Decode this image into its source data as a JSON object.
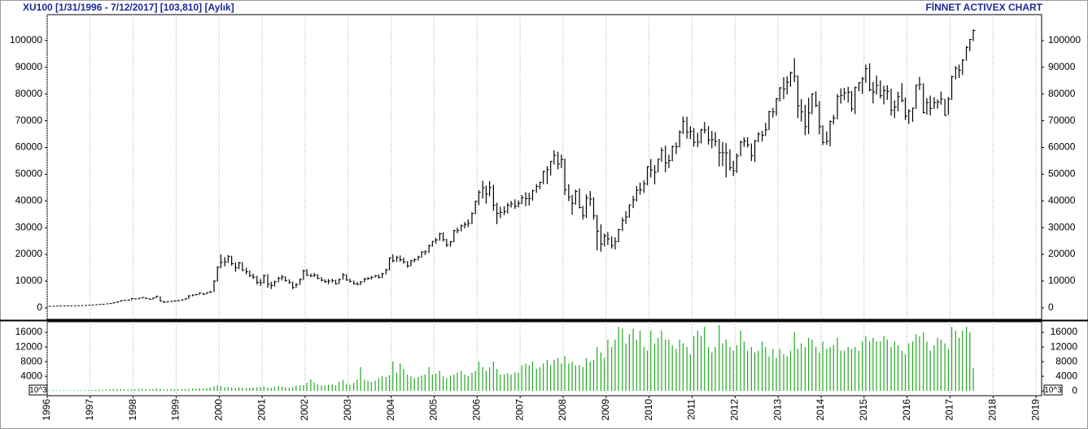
{
  "chart_data": {
    "type": "ohlc",
    "title": "XU100  [1/31/1996 - 7/12/2017]  [103,810]  [Aylık]",
    "source": "FİNNET ACTIVEX CHART",
    "color": "#000000",
    "grid": true,
    "xlim": [
      1996,
      2019.13
    ],
    "xticks": [
      1996,
      1997,
      1998,
      1999,
      2000,
      2001,
      2002,
      2003,
      2004,
      2005,
      2006,
      2007,
      2008,
      2009,
      2010,
      2011,
      2012,
      2013,
      2014,
      2015,
      2016,
      2017,
      2018,
      2019
    ],
    "ylim": [
      -4300,
      109700
    ],
    "yticks": [
      0,
      10000,
      20000,
      30000,
      40000,
      50000,
      60000,
      70000,
      80000,
      90000,
      100000
    ],
    "x": [
      1996.04,
      1996.13,
      1996.21,
      1996.29,
      1996.38,
      1996.46,
      1996.54,
      1996.63,
      1996.71,
      1996.79,
      1996.88,
      1996.96,
      1997.04,
      1997.13,
      1997.21,
      1997.29,
      1997.38,
      1997.46,
      1997.54,
      1997.63,
      1997.71,
      1997.79,
      1997.88,
      1997.96,
      1998.04,
      1998.13,
      1998.21,
      1998.29,
      1998.38,
      1998.46,
      1998.54,
      1998.63,
      1998.71,
      1998.79,
      1998.88,
      1998.96,
      1999.04,
      1999.13,
      1999.21,
      1999.29,
      1999.38,
      1999.46,
      1999.54,
      1999.63,
      1999.71,
      1999.79,
      1999.88,
      1999.96,
      2000.04,
      2000.13,
      2000.21,
      2000.29,
      2000.38,
      2000.46,
      2000.54,
      2000.63,
      2000.71,
      2000.79,
      2000.88,
      2000.96,
      2001.04,
      2001.13,
      2001.21,
      2001.29,
      2001.38,
      2001.46,
      2001.54,
      2001.63,
      2001.71,
      2001.79,
      2001.88,
      2001.96,
      2002.04,
      2002.13,
      2002.21,
      2002.29,
      2002.38,
      2002.46,
      2002.54,
      2002.63,
      2002.71,
      2002.79,
      2002.88,
      2002.96,
      2003.04,
      2003.13,
      2003.21,
      2003.29,
      2003.38,
      2003.46,
      2003.54,
      2003.63,
      2003.71,
      2003.79,
      2003.88,
      2003.96,
      2004.04,
      2004.13,
      2004.21,
      2004.29,
      2004.38,
      2004.46,
      2004.54,
      2004.63,
      2004.71,
      2004.79,
      2004.88,
      2004.96,
      2005.04,
      2005.13,
      2005.21,
      2005.29,
      2005.38,
      2005.46,
      2005.54,
      2005.63,
      2005.71,
      2005.79,
      2005.88,
      2005.96,
      2006.04,
      2006.13,
      2006.21,
      2006.29,
      2006.38,
      2006.46,
      2006.54,
      2006.63,
      2006.71,
      2006.79,
      2006.88,
      2006.96,
      2007.04,
      2007.13,
      2007.21,
      2007.29,
      2007.38,
      2007.46,
      2007.54,
      2007.63,
      2007.71,
      2007.79,
      2007.88,
      2007.96,
      2008.04,
      2008.13,
      2008.21,
      2008.29,
      2008.38,
      2008.46,
      2008.54,
      2008.63,
      2008.71,
      2008.79,
      2008.88,
      2008.96,
      2009.04,
      2009.13,
      2009.21,
      2009.29,
      2009.38,
      2009.46,
      2009.54,
      2009.63,
      2009.71,
      2009.79,
      2009.88,
      2009.96,
      2010.04,
      2010.13,
      2010.21,
      2010.29,
      2010.38,
      2010.46,
      2010.54,
      2010.63,
      2010.71,
      2010.79,
      2010.88,
      2010.96,
      2011.04,
      2011.13,
      2011.21,
      2011.29,
      2011.38,
      2011.46,
      2011.54,
      2011.63,
      2011.71,
      2011.79,
      2011.88,
      2011.96,
      2012.04,
      2012.13,
      2012.21,
      2012.29,
      2012.38,
      2012.46,
      2012.54,
      2012.63,
      2012.71,
      2012.79,
      2012.88,
      2012.96,
      2013.04,
      2013.13,
      2013.21,
      2013.29,
      2013.38,
      2013.46,
      2013.54,
      2013.63,
      2013.71,
      2013.79,
      2013.88,
      2013.96,
      2014.04,
      2014.13,
      2014.21,
      2014.29,
      2014.38,
      2014.46,
      2014.54,
      2014.63,
      2014.71,
      2014.79,
      2014.88,
      2014.96,
      2015.04,
      2015.13,
      2015.21,
      2015.29,
      2015.38,
      2015.46,
      2015.54,
      2015.63,
      2015.71,
      2015.79,
      2015.88,
      2015.96,
      2016.04,
      2016.13,
      2016.21,
      2016.29,
      2016.38,
      2016.46,
      2016.54,
      2016.63,
      2016.71,
      2016.79,
      2016.88,
      2016.96,
      2017.04,
      2017.13,
      2017.21,
      2017.29,
      2017.38,
      2017.46,
      2017.54
    ],
    "high": [
      600,
      640,
      670,
      730,
      730,
      750,
      740,
      790,
      830,
      870,
      930,
      1000,
      1100,
      1250,
      1300,
      1400,
      1550,
      1650,
      1950,
      2400,
      2800,
      2950,
      3100,
      3500,
      3600,
      3700,
      4000,
      4000,
      3600,
      3800,
      4500,
      4300,
      2600,
      2500,
      2600,
      2800,
      2900,
      3100,
      3500,
      4700,
      5000,
      5200,
      5700,
      5600,
      5800,
      6300,
      10300,
      15500,
      20000,
      19000,
      19800,
      19500,
      17000,
      17200,
      17100,
      15000,
      14000,
      12800,
      12000,
      10800,
      12500,
      12600,
      9700,
      10200,
      11600,
      12300,
      11800,
      10700,
      9800,
      9200,
      11000,
      14300,
      14500,
      12800,
      13000,
      12600,
      11500,
      10700,
      10800,
      10900,
      10500,
      11000,
      13000,
      12600,
      10900,
      10200,
      9700,
      10000,
      11200,
      11500,
      11900,
      12300,
      12500,
      13100,
      14600,
      18900,
      20000,
      19500,
      19600,
      18800,
      17500,
      18000,
      18500,
      19500,
      21200,
      21500,
      23600,
      25000,
      26200,
      28100,
      28300,
      25800,
      25000,
      29200,
      30000,
      31200,
      32100,
      33100,
      35800,
      40100,
      44000,
      47500,
      45800,
      47400,
      46000,
      39300,
      37800,
      38000,
      39300,
      40000,
      40600,
      40200,
      42200,
      43300,
      43000,
      44200,
      46300,
      47200,
      51300,
      53000,
      55000,
      59000,
      58400,
      57300,
      55800,
      46300,
      42300,
      44200,
      44600,
      38100,
      42500,
      43700,
      41400,
      34800,
      31200,
      27800,
      28400,
      26700,
      26400,
      29600,
      33800,
      36100,
      38700,
      41900,
      45600,
      46900,
      47700,
      53000,
      55700,
      53400,
      55800,
      60000,
      60700,
      57300,
      60700,
      61900,
      66400,
      71600,
      71500,
      68000,
      67300,
      65500,
      67000,
      69500,
      68000,
      66200,
      65800,
      63200,
      62000,
      61600,
      59300,
      55000,
      57800,
      62600,
      63800,
      63800,
      61500,
      62800,
      65700,
      66200,
      69200,
      73700,
      74800,
      78500,
      82600,
      86300,
      86600,
      88400,
      93400,
      87000,
      78100,
      75900,
      78600,
      80300,
      81000,
      77300,
      68300,
      66000,
      70100,
      72200,
      80000,
      82100,
      82300,
      82700,
      81100,
      82800,
      84500,
      86400,
      91000,
      91500,
      84500,
      86900,
      85100,
      83100,
      83300,
      82000,
      77600,
      80900,
      84100,
      78700,
      74300,
      74900,
      83500,
      86400,
      84000,
      78500,
      79400,
      78800,
      78000,
      80900,
      78200,
      78900,
      86900,
      90500,
      91000,
      93000,
      98000,
      100600,
      104200
    ],
    "low": [
      480,
      550,
      590,
      630,
      660,
      680,
      660,
      680,
      740,
      780,
      820,
      880,
      950,
      1050,
      1150,
      1200,
      1330,
      1480,
      1580,
      1850,
      2250,
      2600,
      2700,
      2850,
      3200,
      3200,
      3500,
      3400,
      3100,
      3100,
      3600,
      2400,
      1800,
      2000,
      2200,
      2300,
      2400,
      2600,
      2900,
      3300,
      4300,
      4600,
      4900,
      4800,
      5000,
      5500,
      5900,
      9800,
      14800,
      15500,
      16800,
      15800,
      13500,
      14500,
      13800,
      12500,
      11600,
      10800,
      8700,
      8200,
      9000,
      7500,
      7000,
      8000,
      9500,
      10200,
      9800,
      9000,
      7000,
      7500,
      8600,
      10400,
      11900,
      11500,
      11500,
      10700,
      9900,
      9300,
      8800,
      9400,
      8700,
      8800,
      10500,
      10100,
      9500,
      8700,
      8400,
      8500,
      9500,
      10400,
      10600,
      11300,
      11000,
      11100,
      12500,
      14000,
      17000,
      17200,
      17300,
      16500,
      15000,
      15500,
      17000,
      17700,
      18700,
      19800,
      20500,
      22900,
      24000,
      25100,
      24800,
      22800,
      22900,
      24500,
      27900,
      28600,
      29700,
      30200,
      31300,
      35000,
      38400,
      40900,
      39000,
      41700,
      36300,
      31300,
      33600,
      34700,
      35300,
      37500,
      37000,
      37600,
      38800,
      38000,
      38300,
      40100,
      43000,
      44300,
      46200,
      46300,
      49500,
      53600,
      51800,
      52300,
      42200,
      39900,
      34800,
      38600,
      37200,
      33000,
      33600,
      38100,
      33000,
      21500,
      21000,
      23000,
      23500,
      22200,
      21800,
      24500,
      28700,
      31400,
      33700,
      37300,
      39800,
      42300,
      43000,
      45800,
      48800,
      46200,
      50700,
      54600,
      50700,
      52300,
      54800,
      57500,
      60000,
      65000,
      63300,
      63100,
      60300,
      60100,
      61500,
      65200,
      61000,
      59700,
      60400,
      52900,
      53000,
      48800,
      51300,
      49300,
      50500,
      56700,
      60200,
      60000,
      54900,
      54600,
      61900,
      62200,
      64300,
      66500,
      71200,
      71900,
      77200,
      78100,
      79800,
      82700,
      84400,
      71000,
      69700,
      64600,
      65000,
      72400,
      75100,
      64900,
      60900,
      61000,
      60400,
      68600,
      70500,
      76400,
      77700,
      76900,
      73400,
      72500,
      81000,
      80000,
      84200,
      81000,
      76500,
      79800,
      78300,
      76100,
      77800,
      71900,
      71000,
      73500,
      76900,
      70300,
      68800,
      69600,
      74500,
      81500,
      72700,
      72300,
      72000,
      74500,
      74500,
      76000,
      71800,
      72200,
      77800,
      85500,
      86000,
      87100,
      92500,
      96000,
      99800
    ],
    "close": [
      570,
      600,
      640,
      700,
      690,
      720,
      690,
      760,
      800,
      830,
      900,
      975,
      1070,
      1200,
      1250,
      1350,
      1500,
      1600,
      1900,
      2300,
      2700,
      2800,
      2900,
      3450,
      3300,
      3600,
      3900,
      3500,
      3200,
      3700,
      4300,
      2500,
      2100,
      2300,
      2400,
      2600,
      2700,
      3000,
      3400,
      4500,
      4800,
      5000,
      5500,
      5100,
      5700,
      6000,
      10000,
      15200,
      17000,
      17200,
      19200,
      16500,
      15000,
      16800,
      14000,
      13500,
      12000,
      11500,
      9500,
      9400,
      12000,
      8800,
      8300,
      9700,
      11000,
      11500,
      10200,
      9500,
      7600,
      8700,
      10600,
      13800,
      12200,
      12000,
      12300,
      11000,
      10300,
      9800,
      10000,
      10200,
      9000,
      10600,
      12300,
      10400,
      9900,
      9000,
      8800,
      9700,
      10800,
      11000,
      11400,
      12000,
      11400,
      12700,
      14200,
      18600,
      17600,
      18800,
      18000,
      17200,
      15700,
      17600,
      18000,
      19000,
      20900,
      21000,
      23200,
      24900,
      25400,
      27700,
      25500,
      23500,
      24700,
      28900,
      29000,
      30700,
      31200,
      31600,
      35300,
      39800,
      43200,
      44900,
      42600,
      45000,
      38400,
      35400,
      35700,
      36000,
      38400,
      38900,
      38000,
      39100,
      41200,
      40800,
      40900,
      43800,
      45400,
      46900,
      51000,
      51700,
      54800,
      57000,
      53800,
      55500,
      44100,
      41400,
      39100,
      43600,
      37500,
      34400,
      41100,
      40700,
      34400,
      28700,
      23900,
      26900,
      25800,
      23300,
      24800,
      29300,
      32700,
      34000,
      38500,
      40400,
      44000,
      44100,
      46400,
      52800,
      51600,
      50700,
      55600,
      58900,
      54200,
      55100,
      60400,
      60300,
      65700,
      69800,
      65700,
      66000,
      61900,
      62000,
      66600,
      66500,
      62800,
      62900,
      62300,
      58100,
      58000,
      58000,
      52400,
      51300,
      56800,
      61900,
      62400,
      61000,
      56900,
      62500,
      65000,
      64600,
      66600,
      73400,
      73300,
      78200,
      82300,
      81900,
      84400,
      87900,
      86600,
      75600,
      73300,
      67800,
      72900,
      80000,
      75700,
      67800,
      61900,
      62300,
      69700,
      71000,
      79100,
      79500,
      80400,
      80700,
      74500,
      82400,
      84200,
      85700,
      89500,
      81600,
      80800,
      83200,
      79400,
      81300,
      81000,
      73900,
      75100,
      79000,
      77600,
      71700,
      73600,
      74700,
      83300,
      83600,
      73100,
      76800,
      74600,
      76800,
      77000,
      78100,
      72000,
      78100,
      86500,
      89600,
      88900,
      92700,
      97400,
      100400,
      103800
    ],
    "volume": {
      "type": "bar",
      "color": "#22a822",
      "unit_label": "10^3",
      "ylim": [
        -1300,
        18900
      ],
      "yticks": [
        0,
        4000,
        8000,
        12000,
        16000
      ],
      "values": [
        150,
        200,
        180,
        170,
        160,
        150,
        170,
        180,
        190,
        200,
        210,
        250,
        250,
        300,
        350,
        320,
        400,
        450,
        500,
        550,
        500,
        450,
        400,
        450,
        500,
        550,
        600,
        500,
        450,
        500,
        700,
        600,
        400,
        450,
        500,
        450,
        450,
        500,
        550,
        600,
        700,
        650,
        750,
        700,
        800,
        900,
        1200,
        1500,
        1300,
        1000,
        1100,
        900,
        800,
        1000,
        900,
        850,
        800,
        900,
        1000,
        1100,
        1200,
        900,
        800,
        1100,
        1300,
        1200,
        1000,
        900,
        1000,
        1400,
        1500,
        1600,
        2200,
        3200,
        2300,
        1800,
        1500,
        1500,
        1700,
        1800,
        1500,
        2500,
        3000,
        2000,
        1700,
        2200,
        3000,
        6500,
        3000,
        2800,
        2500,
        2800,
        3500,
        4000,
        3800,
        4300,
        8000,
        5000,
        7500,
        6000,
        4500,
        4000,
        3500,
        3800,
        4200,
        4500,
        6500,
        4500,
        4700,
        5500,
        4000,
        3500,
        4200,
        4500,
        5000,
        5500,
        4500,
        4000,
        5000,
        5500,
        8000,
        6500,
        5500,
        6500,
        8000,
        6000,
        4500,
        4500,
        4800,
        4500,
        5000,
        5000,
        7000,
        7500,
        7000,
        8000,
        6000,
        6500,
        7500,
        8500,
        7000,
        8500,
        9000,
        7500,
        9500,
        7500,
        8000,
        7000,
        7000,
        6500,
        9000,
        8000,
        8500,
        12000,
        10500,
        9000,
        14000,
        12000,
        14000,
        17500,
        17000,
        13000,
        15500,
        17000,
        14000,
        16500,
        12000,
        11000,
        16500,
        13000,
        14500,
        16500,
        14000,
        14000,
        12500,
        11500,
        14000,
        13000,
        12000,
        10000,
        15000,
        16500,
        15000,
        17500,
        12000,
        10500,
        12000,
        18000,
        13000,
        14000,
        12000,
        11000,
        12500,
        16500,
        13500,
        11000,
        12000,
        10500,
        11000,
        13500,
        12000,
        9500,
        11500,
        9000,
        11500,
        10000,
        9500,
        11000,
        16000,
        11500,
        13000,
        12000,
        14500,
        14000,
        12000,
        10500,
        13500,
        11500,
        12000,
        12500,
        14500,
        11000,
        11000,
        12000,
        11500,
        12000,
        11000,
        13500,
        15000,
        13500,
        14500,
        13500,
        13500,
        15000,
        14000,
        12000,
        13500,
        12500,
        11000,
        10000,
        13000,
        13500,
        15500,
        15000,
        16000,
        13500,
        11000,
        12500,
        14500,
        14000,
        13000,
        11500,
        17500,
        16500,
        14500,
        16500,
        17500,
        16000,
        6200
      ]
    }
  }
}
